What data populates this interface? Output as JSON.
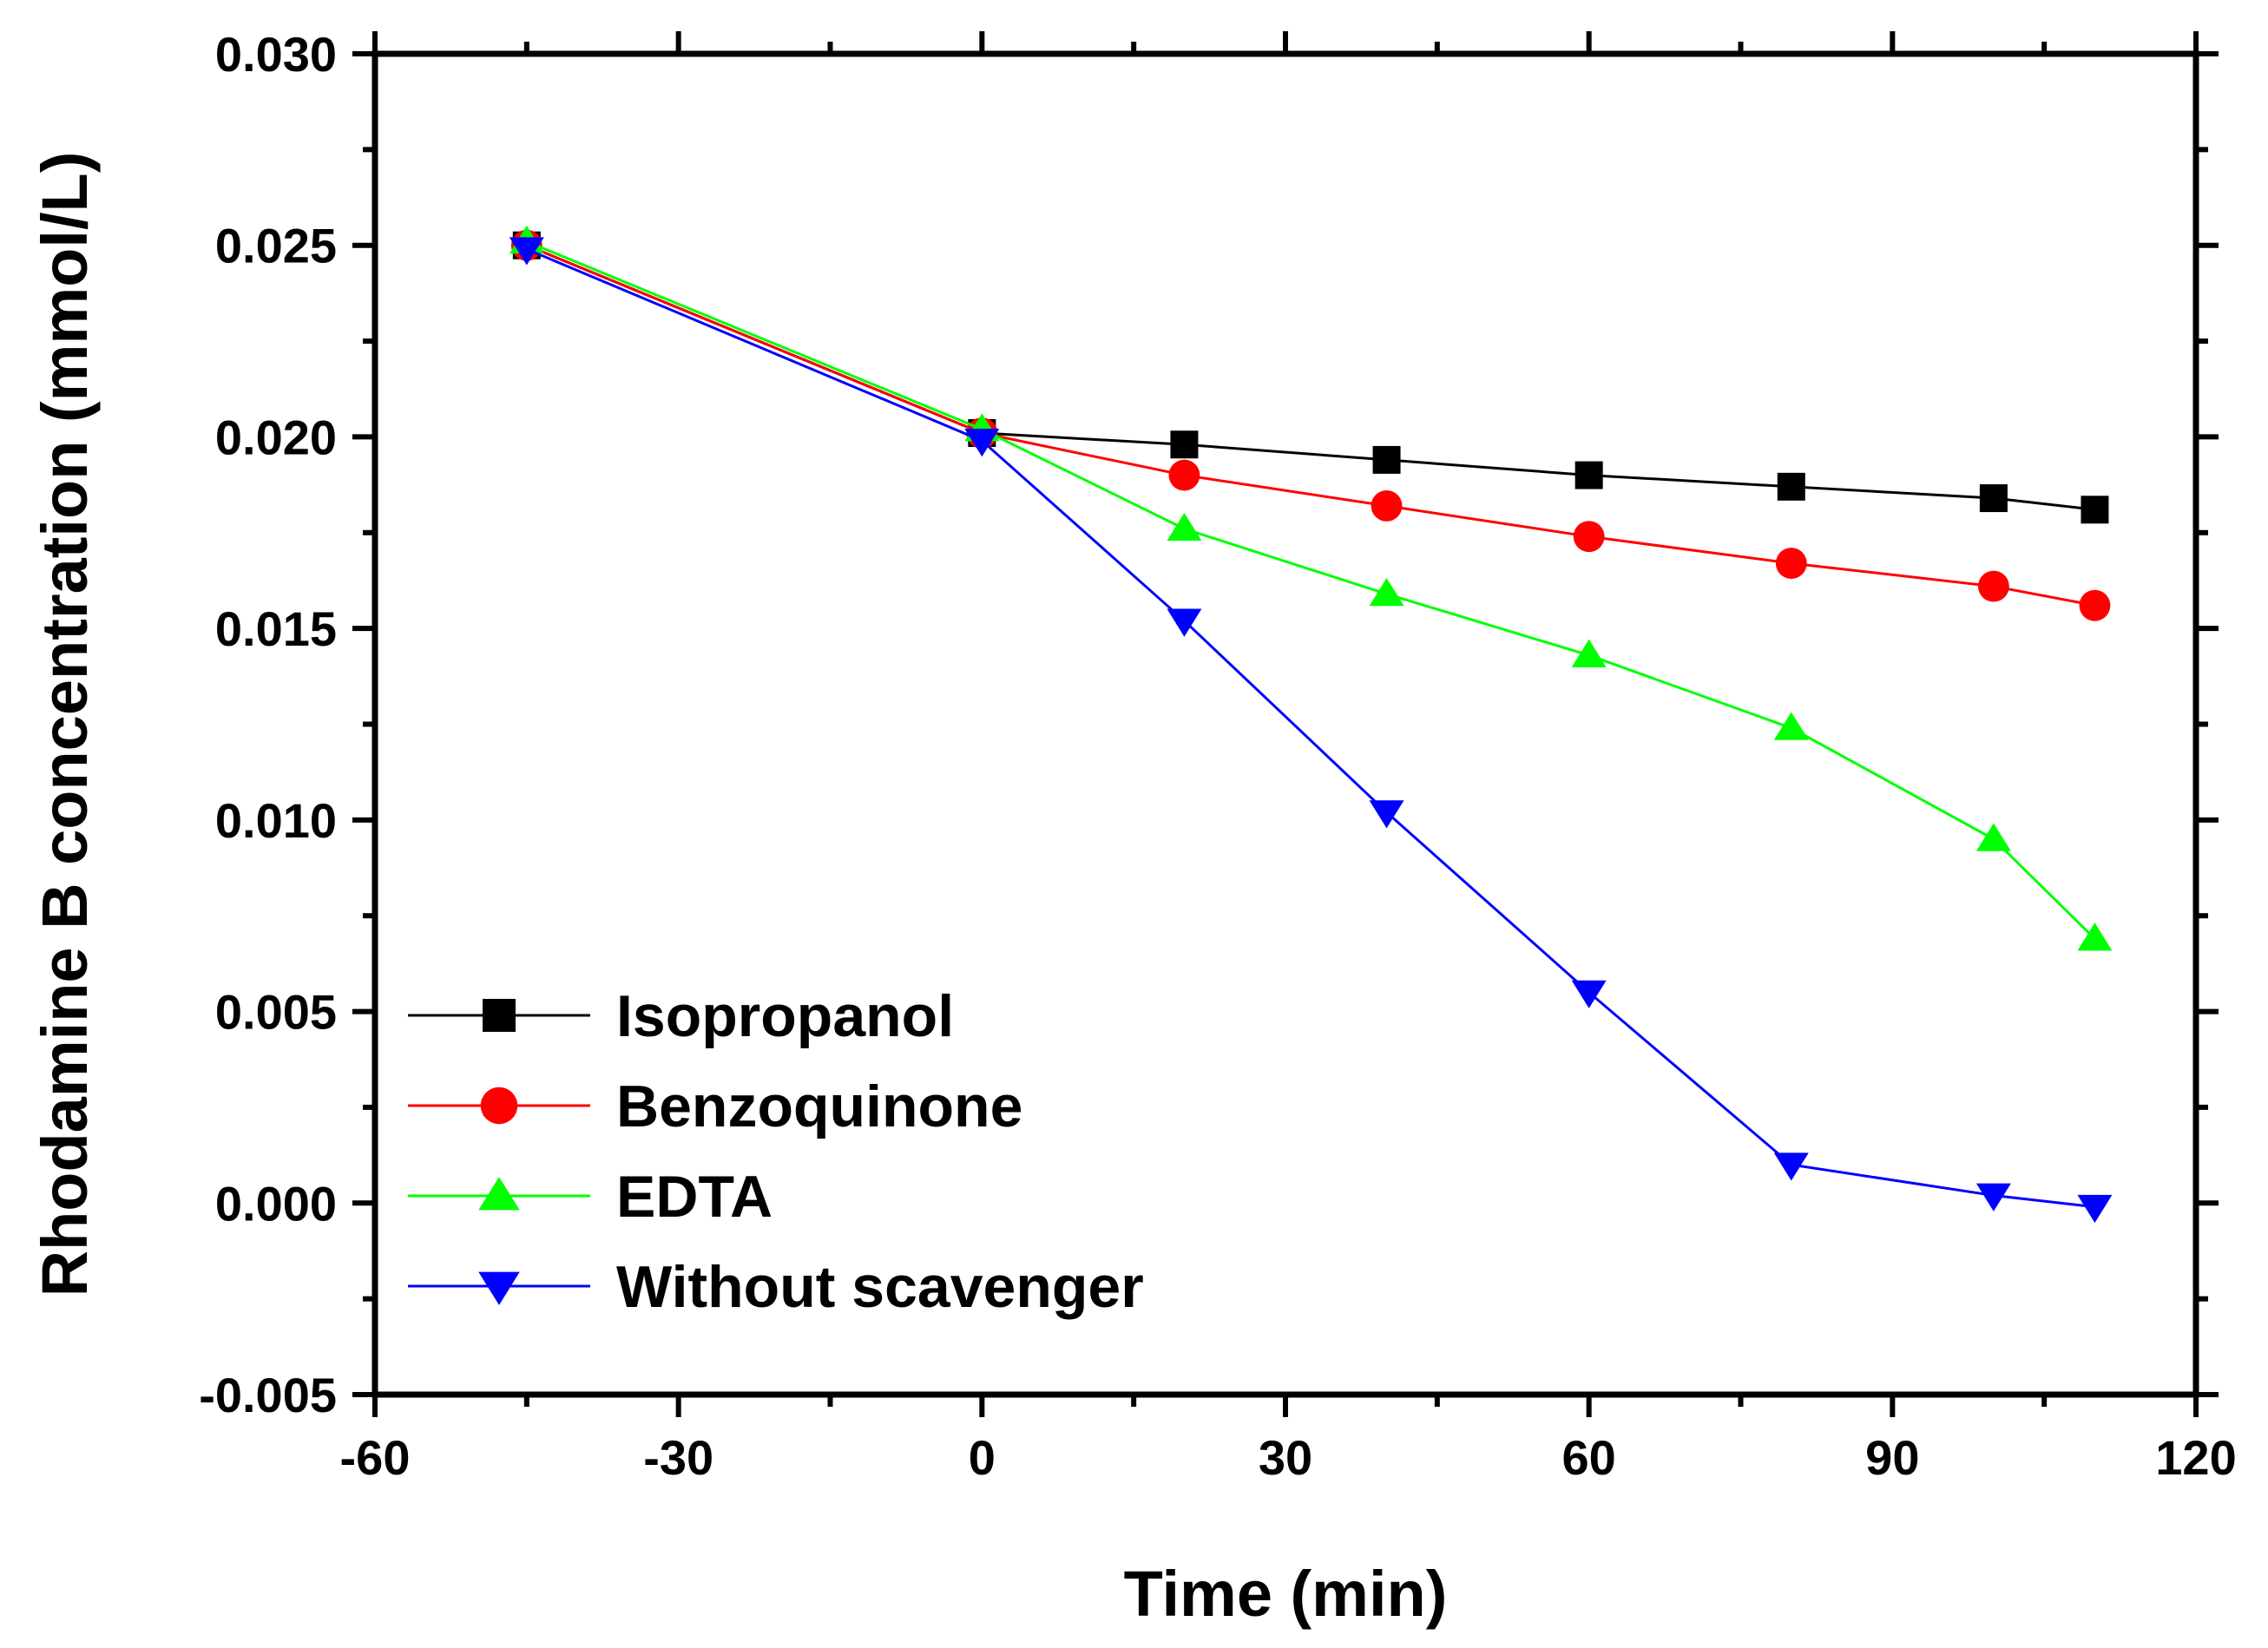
{
  "chart_data": {
    "type": "line",
    "title": "",
    "xlabel": "Time (min)",
    "ylabel": "Rhodamine B concentration (mmol/L)",
    "xlim": [
      -60,
      120
    ],
    "ylim": [
      -0.005,
      0.03
    ],
    "x_ticks": [
      "-60",
      "-30",
      "0",
      "30",
      "60",
      "90",
      "120"
    ],
    "y_ticks": [
      "-0.005",
      "0.000",
      "0.005",
      "0.010",
      "0.015",
      "0.020",
      "0.025",
      "0.030"
    ],
    "grid": false,
    "legend_position": "bottom-left",
    "series": [
      {
        "name": "Isopropanol",
        "color": "#000000",
        "marker": "square",
        "x": [
          -45,
          0,
          20,
          40,
          60,
          80,
          100,
          110
        ],
        "y": [
          0.025,
          0.0201,
          0.0198,
          0.0194,
          0.019,
          0.0187,
          0.0184,
          0.0181
        ]
      },
      {
        "name": "Benzoquinone",
        "color": "#ff0000",
        "marker": "circle",
        "x": [
          -45,
          0,
          20,
          40,
          60,
          80,
          100,
          110
        ],
        "y": [
          0.025,
          0.0201,
          0.019,
          0.0182,
          0.0174,
          0.0167,
          0.0161,
          0.0156
        ]
      },
      {
        "name": "EDTA",
        "color": "#00ff00",
        "marker": "triangle-up",
        "x": [
          -45,
          0,
          20,
          40,
          60,
          80,
          100,
          110
        ],
        "y": [
          0.0251,
          0.0202,
          0.0176,
          0.0159,
          0.0143,
          0.0124,
          0.0095,
          0.0069
        ]
      },
      {
        "name": "Without scavenger",
        "color": "#0000ff",
        "marker": "triangle-down",
        "x": [
          -45,
          0,
          20,
          40,
          60,
          80,
          100,
          110
        ],
        "y": [
          0.0249,
          0.0199,
          0.0152,
          0.0102,
          0.0055,
          0.001,
          0.0002,
          -0.0001
        ]
      }
    ]
  }
}
